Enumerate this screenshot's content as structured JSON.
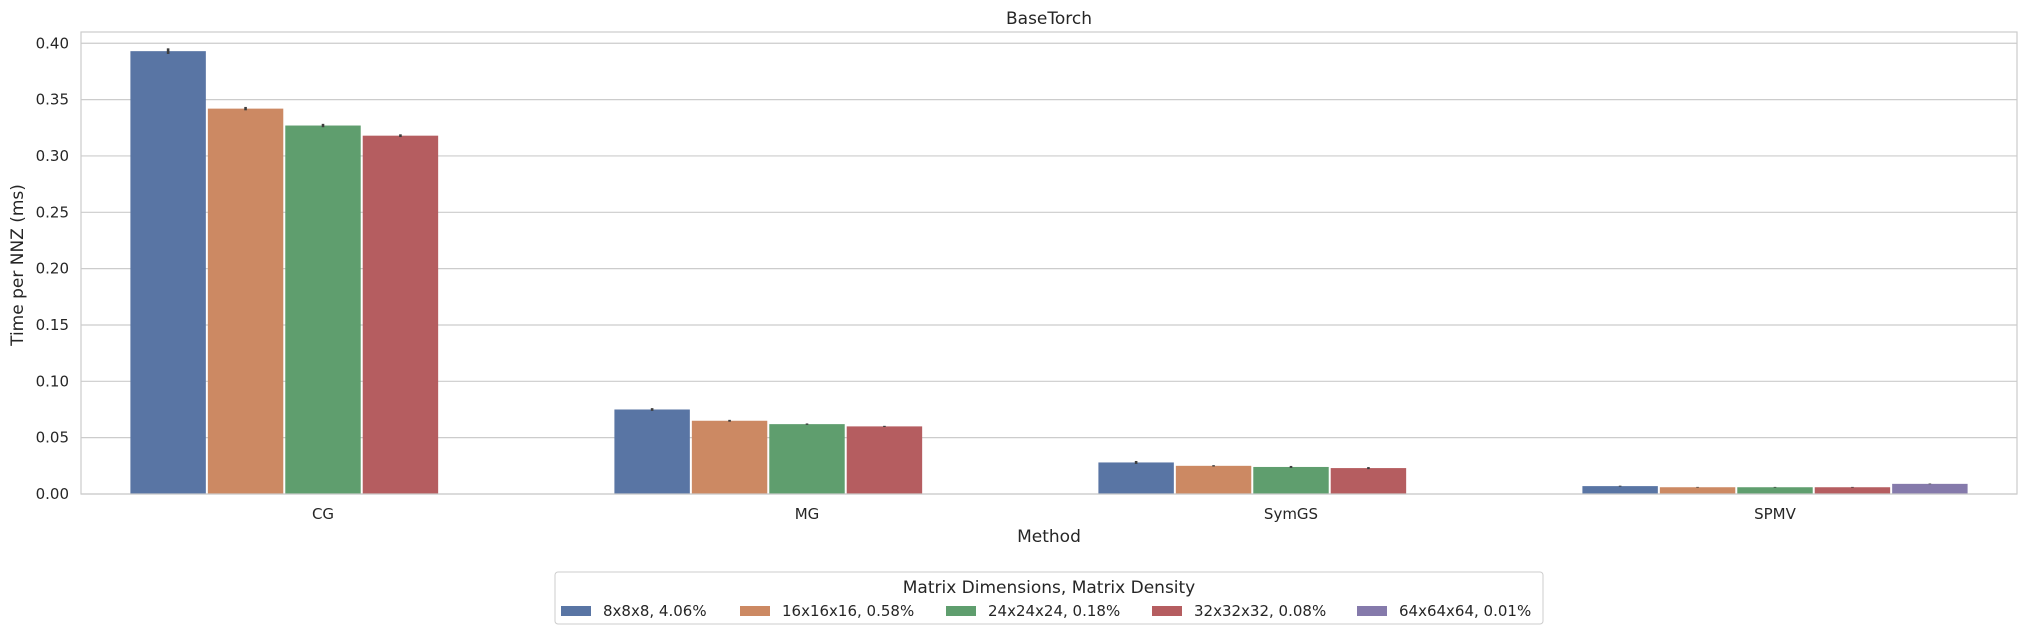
{
  "chart_data": {
    "type": "bar",
    "title": "BaseTorch",
    "xlabel": "Method",
    "ylabel": "Time per NNZ (ms)",
    "ylim": [
      0,
      0.41
    ],
    "yticks": [
      "0.00",
      "0.05",
      "0.10",
      "0.15",
      "0.20",
      "0.25",
      "0.30",
      "0.35",
      "0.40"
    ],
    "grid": true,
    "legend_placement": "bottom-center",
    "legend_title": "Matrix Dimensions, Matrix Density",
    "categories": [
      "CG",
      "MG",
      "SymGS",
      "SPMV"
    ],
    "series": [
      {
        "name": "8x8x8, 4.06%",
        "color": "#5975a4",
        "values": [
          0.393,
          0.075,
          0.028,
          0.007
        ],
        "errors": [
          0.0025,
          0.0012,
          0.0013,
          0.0004
        ]
      },
      {
        "name": "16x16x16, 0.58%",
        "color": "#cc8963",
        "values": [
          0.342,
          0.065,
          0.025,
          0.006
        ],
        "errors": [
          0.0015,
          0.0008,
          0.0006,
          0.0003
        ]
      },
      {
        "name": "24x24x24, 0.18%",
        "color": "#5f9e6e",
        "values": [
          0.327,
          0.062,
          0.024,
          0.006
        ],
        "errors": [
          0.0015,
          0.0006,
          0.0009,
          0.0003
        ]
      },
      {
        "name": "32x32x32, 0.08%",
        "color": "#b55d60",
        "values": [
          0.318,
          0.06,
          0.023,
          0.006
        ],
        "errors": [
          0.0012,
          0.0005,
          0.0009,
          0.0003
        ]
      },
      {
        "name": "64x64x64, 0.01%",
        "color": "#857aab",
        "values": [
          null,
          null,
          null,
          0.009
        ],
        "errors": [
          null,
          null,
          null,
          0.0003
        ]
      }
    ]
  }
}
